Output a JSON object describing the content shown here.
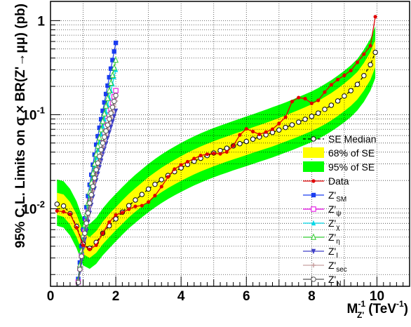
{
  "chart_data": {
    "type": "line",
    "xlabel": "M_{Z'}^{-1} (TeV^{-1})",
    "xlabel_parts": {
      "m": "M",
      "sup": "-1",
      "sub": "Z'",
      "units": "(TeV",
      "units_sup": "-1",
      "units_close": ")"
    },
    "ylabel": "95% C.L. Limits on σ × BR(Z'→μμ) (pb)",
    "y_scale": "log",
    "xlim": [
      0,
      11
    ],
    "ylim": [
      0.0015,
      1.6
    ],
    "x_ticks": [
      0,
      2,
      4,
      6,
      8,
      10
    ],
    "x_tick_labels": [
      "0",
      "2",
      "4",
      "6",
      "8",
      "10"
    ],
    "y_ticks": [
      0.01,
      0.1,
      1
    ],
    "y_tick_labels": [
      "10⁻²",
      "10⁻¹",
      "1"
    ],
    "grid": true,
    "legend_position": "bottom-right",
    "median_x": [
      0.2,
      0.4,
      0.6,
      0.8,
      1.0,
      1.2,
      1.4,
      1.6,
      1.8,
      2.0,
      2.2,
      2.4,
      2.6,
      2.8,
      3.0,
      3.2,
      3.4,
      3.6,
      3.8,
      4.0,
      4.2,
      4.4,
      4.6,
      4.8,
      5.0,
      5.2,
      5.4,
      5.6,
      5.8,
      6.0,
      6.2,
      6.4,
      6.6,
      6.8,
      7.0,
      7.2,
      7.4,
      7.6,
      7.8,
      8.0,
      8.2,
      8.4,
      8.6,
      8.8,
      9.0,
      9.2,
      9.4,
      9.6,
      9.8,
      9.95
    ],
    "median_y": [
      0.0112,
      0.0107,
      0.0089,
      0.0065,
      0.0042,
      0.0038,
      0.0044,
      0.0055,
      0.0066,
      0.0078,
      0.0092,
      0.0108,
      0.0124,
      0.0142,
      0.0162,
      0.0182,
      0.0204,
      0.0226,
      0.0248,
      0.0272,
      0.0296,
      0.032,
      0.0344,
      0.0368,
      0.0392,
      0.0416,
      0.044,
      0.0466,
      0.0492,
      0.052,
      0.055,
      0.058,
      0.0612,
      0.0648,
      0.0688,
      0.0732,
      0.078,
      0.0834,
      0.0894,
      0.096,
      0.104,
      0.114,
      0.126,
      0.14,
      0.158,
      0.18,
      0.21,
      0.26,
      0.34,
      0.46
    ],
    "band68_lo": [
      0.0086,
      0.0082,
      0.0068,
      0.005,
      0.0033,
      0.003,
      0.0034,
      0.0042,
      0.005,
      0.0059,
      0.0069,
      0.0081,
      0.0093,
      0.0106,
      0.012,
      0.0135,
      0.015,
      0.0166,
      0.0182,
      0.0198,
      0.0215,
      0.0232,
      0.0249,
      0.0266,
      0.0283,
      0.03,
      0.0317,
      0.0335,
      0.0353,
      0.0372,
      0.0393,
      0.0414,
      0.0436,
      0.046,
      0.0488,
      0.0518,
      0.055,
      0.0586,
      0.0626,
      0.067,
      0.0724,
      0.079,
      0.087,
      0.097,
      0.109,
      0.124,
      0.145,
      0.18,
      0.235,
      0.32
    ],
    "band68_hi": [
      0.0148,
      0.0142,
      0.0118,
      0.0087,
      0.0056,
      0.005,
      0.0058,
      0.0073,
      0.0088,
      0.0104,
      0.0123,
      0.0144,
      0.0166,
      0.019,
      0.0217,
      0.0244,
      0.0273,
      0.0302,
      0.0331,
      0.0363,
      0.0395,
      0.0427,
      0.0459,
      0.0491,
      0.0523,
      0.0555,
      0.0587,
      0.0622,
      0.0657,
      0.0694,
      0.0735,
      0.0776,
      0.082,
      0.0869,
      0.0923,
      0.0982,
      0.105,
      0.112,
      0.12,
      0.129,
      0.14,
      0.154,
      0.17,
      0.19,
      0.215,
      0.245,
      0.285,
      0.355,
      0.465,
      0.63
    ],
    "band95_lo": [
      0.0066,
      0.0063,
      0.0052,
      0.0038,
      0.0025,
      0.0023,
      0.0026,
      0.0032,
      0.0038,
      0.0045,
      0.0053,
      0.0062,
      0.0071,
      0.0081,
      0.0092,
      0.0103,
      0.0115,
      0.0127,
      0.0139,
      0.0151,
      0.0164,
      0.0177,
      0.019,
      0.0203,
      0.0216,
      0.0229,
      0.0242,
      0.0256,
      0.027,
      0.0284,
      0.03,
      0.0316,
      0.0333,
      0.0351,
      0.0373,
      0.0396,
      0.042,
      0.0448,
      0.0478,
      0.0512,
      0.0553,
      0.0603,
      0.0664,
      0.074,
      0.0832,
      0.0946,
      0.111,
      0.137,
      0.18,
      0.245
    ],
    "band95_hi": [
      0.0205,
      0.0196,
      0.0163,
      0.012,
      0.0077,
      0.0069,
      0.008,
      0.0101,
      0.0122,
      0.0144,
      0.017,
      0.0199,
      0.023,
      0.0263,
      0.03,
      0.0338,
      0.0378,
      0.0418,
      0.0458,
      0.0502,
      0.0546,
      0.059,
      0.0634,
      0.0678,
      0.0722,
      0.0766,
      0.081,
      0.0858,
      0.0906,
      0.0958,
      0.101,
      0.107,
      0.113,
      0.12,
      0.127,
      0.135,
      0.144,
      0.154,
      0.165,
      0.177,
      0.192,
      0.211,
      0.233,
      0.26,
      0.294,
      0.335,
      0.39,
      0.49,
      0.64,
      0.87
    ],
    "data_x": [
      0.2,
      0.4,
      0.6,
      0.8,
      1.0,
      1.2,
      1.4,
      1.6,
      1.8,
      2.0,
      2.2,
      2.4,
      2.6,
      2.8,
      3.0,
      3.2,
      3.4,
      3.6,
      3.8,
      4.0,
      4.2,
      4.4,
      4.6,
      4.8,
      5.0,
      5.2,
      5.4,
      5.6,
      5.8,
      6.0,
      6.2,
      6.4,
      6.6,
      6.8,
      7.0,
      7.2,
      7.4,
      7.6,
      7.8,
      8.0,
      8.2,
      8.4,
      8.6,
      8.8,
      9.0,
      9.2,
      9.4,
      9.6,
      9.8,
      9.95
    ],
    "data_y": [
      0.0095,
      0.0093,
      0.0088,
      0.0063,
      0.0041,
      0.0037,
      0.0041,
      0.0055,
      0.0072,
      0.0086,
      0.0091,
      0.0099,
      0.0106,
      0.0108,
      0.0118,
      0.0138,
      0.0172,
      0.0218,
      0.0264,
      0.0293,
      0.0316,
      0.0342,
      0.0368,
      0.038,
      0.0388,
      0.0384,
      0.0402,
      0.0468,
      0.061,
      0.0708,
      0.0662,
      0.0618,
      0.0654,
      0.0702,
      0.0806,
      0.0942,
      0.138,
      0.152,
      0.148,
      0.132,
      0.142,
      0.174,
      0.208,
      0.236,
      0.262,
      0.295,
      0.36,
      0.44,
      0.54,
      1.1
    ],
    "steep_x": [
      0.8,
      1.0,
      1.2,
      1.4,
      1.6,
      1.8,
      2.0
    ],
    "steep_series": [
      {
        "name": "Z'SM",
        "color": "#1a3cf0",
        "marker": "square",
        "y": [
          0.0012,
          0.006,
          0.018,
          0.048,
          0.11,
          0.25,
          0.58
        ]
      },
      {
        "name": "Z'ψ",
        "color": "#e000e0",
        "marker": "open-square",
        "y": [
          0.0012,
          0.0045,
          0.012,
          0.028,
          0.056,
          0.1,
          0.18
        ]
      },
      {
        "name": "Z'χ",
        "color": "#00d8e8",
        "marker": "triangle",
        "y": [
          0.0012,
          0.005,
          0.014,
          0.035,
          0.075,
          0.15,
          0.3
        ]
      },
      {
        "name": "Z'η",
        "color": "#33cc33",
        "marker": "open-triangle",
        "y": [
          0.0012,
          0.0052,
          0.015,
          0.038,
          0.085,
          0.18,
          0.38
        ]
      },
      {
        "name": "Z'I",
        "color": "#4040c8",
        "marker": "down-triangle",
        "y": [
          0.0012,
          0.0038,
          0.009,
          0.02,
          0.038,
          0.065,
          0.11
        ]
      },
      {
        "name": "Z'sec",
        "color": "#c8a0a0",
        "marker": "cross",
        "y": [
          0.0012,
          0.0041,
          0.0105,
          0.023,
          0.045,
          0.08,
          0.14
        ]
      },
      {
        "name": "Z'N",
        "color": "#555555",
        "marker": "open-circle",
        "y": [
          0.0012,
          0.0043,
          0.0115,
          0.026,
          0.05,
          0.09,
          0.16
        ]
      }
    ],
    "legend": [
      {
        "label": "SE Median",
        "kind": "median"
      },
      {
        "label": "68% of SE",
        "kind": "band68"
      },
      {
        "label": "95% of SE",
        "kind": "band95"
      },
      {
        "label": "Data",
        "kind": "data"
      },
      {
        "label": "Z'",
        "sub": "SM",
        "kind": "s0"
      },
      {
        "label": "Z'",
        "sub": "ψ",
        "kind": "s1"
      },
      {
        "label": "Z'",
        "sub": "χ",
        "kind": "s2"
      },
      {
        "label": "Z'",
        "sub": "η",
        "kind": "s3"
      },
      {
        "label": "Z'",
        "sub": "I",
        "kind": "s4"
      },
      {
        "label": "Z'",
        "sub": "sec",
        "kind": "s5"
      },
      {
        "label": "Z'",
        "sub": "N",
        "kind": "s6"
      }
    ],
    "colors": {
      "band68": "#ffff00",
      "band95": "#00ff00",
      "data": "#e00000",
      "median": "#000000"
    }
  }
}
